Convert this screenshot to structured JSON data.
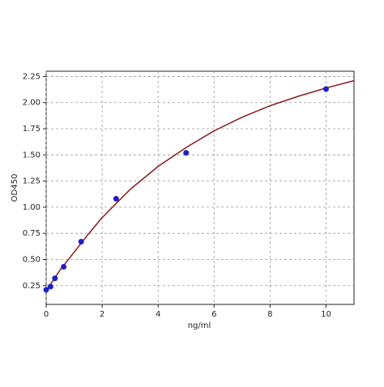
{
  "chart_data": {
    "type": "scatter",
    "x_label": "ng/ml",
    "y_label": "OD450",
    "xlim": [
      0,
      11
    ],
    "ylim": [
      0.07,
      2.3
    ],
    "xticks": [
      0,
      2,
      4,
      6,
      8,
      10
    ],
    "yticks": [
      0.25,
      {
        "value": 0.5,
        "label": "0.50"
      },
      0.75,
      {
        "value": 1,
        "label": "1.00"
      },
      1.25,
      {
        "value": 1.5,
        "label": "1.50"
      },
      1.75,
      {
        "value": 2,
        "label": "2.00"
      },
      2.25
    ],
    "grid": true,
    "series": [
      {
        "color": "#2020c8",
        "x": [
          0,
          0.156,
          0.3125,
          0.625,
          1.25,
          2.5,
          5,
          10
        ],
        "values": [
          0.21,
          0.24,
          0.32,
          0.43,
          0.67,
          1.08,
          1.52,
          2.13
        ]
      },
      {
        "kind": "line",
        "color": "#8b1a1a",
        "x": [
          0,
          0.5,
          1,
          1.5,
          2,
          3,
          4,
          5,
          6,
          7,
          8,
          9,
          10,
          11
        ],
        "values": [
          0.2,
          0.4,
          0.57,
          0.74,
          0.9,
          1.17,
          1.39,
          1.57,
          1.73,
          1.86,
          1.97,
          2.06,
          2.14,
          2.21
        ]
      }
    ]
  }
}
